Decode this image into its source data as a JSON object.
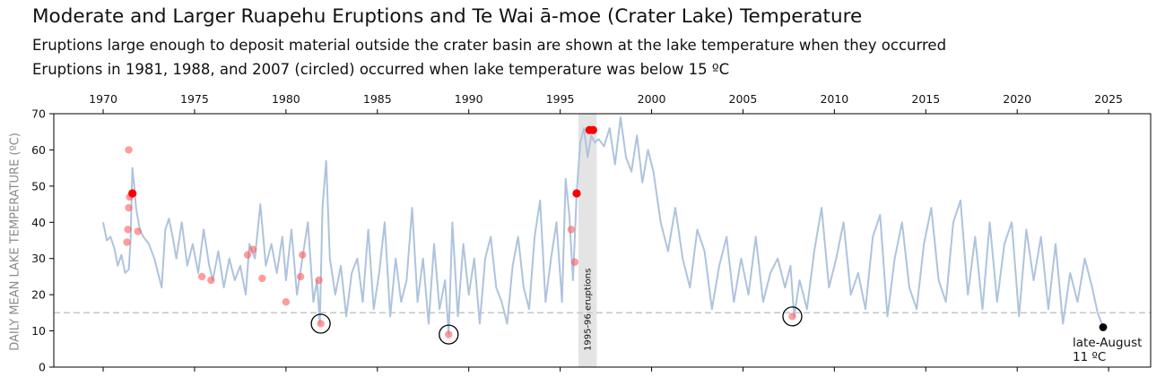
{
  "header": {
    "title": "Moderate and Larger Ruapehu Eruptions and Te Wai ā-moe (Crater Lake) Temperature",
    "subtitle1": "Eruptions large enough to deposit material outside the crater basin are shown at the lake temperature when they occurred",
    "subtitle2": "Eruptions in 1981, 1988, and 2007 (circled) occurred when lake temperature was below 15 ºC"
  },
  "chart_data": {
    "type": "line",
    "ylabel": "DAILY MEAN LAKE TEMPERATURE (ºC)",
    "xlabel": "",
    "xlim": [
      1967.3,
      2027.3
    ],
    "ylim": [
      0,
      70
    ],
    "xticks": [
      1970,
      1975,
      1980,
      1985,
      1990,
      1995,
      2000,
      2005,
      2010,
      2015,
      2020,
      2025
    ],
    "yticks": [
      0,
      10,
      20,
      30,
      40,
      50,
      60,
      70
    ],
    "threshold": 15,
    "shaded_span": {
      "x0": 1996.0,
      "x1": 1997.0,
      "label": "1995-96 eruptions"
    },
    "colors": {
      "line": "#aec3de",
      "eruption": "#ff5a5a",
      "eruption_bold": "#ff0000",
      "threshold": "#c8c8c8",
      "shade": "#e4e4e4",
      "latest": "#000000"
    },
    "series": [
      {
        "x": [
          1970.0,
          1970.2,
          1970.4,
          1970.6,
          1970.8,
          1971.0,
          1971.2,
          1971.4,
          1971.5,
          1971.6,
          1971.7,
          1971.8,
          1972.0,
          1972.2,
          1972.5,
          1972.8,
          1973.0,
          1973.2,
          1973.4,
          1973.6,
          1973.8,
          1974.0,
          1974.3,
          1974.6,
          1974.9,
          1975.2,
          1975.5,
          1975.8,
          1976.0,
          1976.3,
          1976.6,
          1976.9,
          1977.2,
          1977.5,
          1977.8,
          1978.0,
          1978.3,
          1978.6,
          1978.9,
          1979.2,
          1979.5,
          1979.8,
          1980.0,
          1980.3,
          1980.6,
          1980.9,
          1981.2,
          1981.5,
          1981.7,
          1981.85,
          1982.0,
          1982.2,
          1982.4,
          1982.7,
          1983.0,
          1983.3,
          1983.6,
          1983.9,
          1984.2,
          1984.5,
          1984.8,
          1985.1,
          1985.4,
          1985.7,
          1986.0,
          1986.3,
          1986.6,
          1986.9,
          1987.2,
          1987.5,
          1987.8,
          1988.1,
          1988.4,
          1988.7,
          1988.9,
          1989.1,
          1989.4,
          1989.7,
          1990.0,
          1990.3,
          1990.6,
          1990.9,
          1991.2,
          1991.5,
          1991.8,
          1992.1,
          1992.4,
          1992.7,
          1993.0,
          1993.3,
          1993.6,
          1993.9,
          1994.2,
          1994.5,
          1994.8,
          1995.1,
          1995.3,
          1995.5,
          1995.7,
          1995.9,
          1996.1,
          1996.3,
          1996.5,
          1996.7,
          1996.9,
          1997.1,
          1997.4,
          1997.7,
          1998.0,
          1998.3,
          1998.6,
          1998.9,
          1999.2,
          1999.5,
          1999.8,
          2000.1,
          2000.5,
          2000.9,
          2001.3,
          2001.7,
          2002.1,
          2002.5,
          2002.9,
          2003.3,
          2003.7,
          2004.1,
          2004.5,
          2004.9,
          2005.3,
          2005.7,
          2006.1,
          2006.5,
          2006.9,
          2007.3,
          2007.6,
          2007.8,
          2008.1,
          2008.5,
          2008.9,
          2009.3,
          2009.7,
          2010.1,
          2010.5,
          2010.9,
          2011.3,
          2011.7,
          2012.1,
          2012.5,
          2012.9,
          2013.3,
          2013.7,
          2014.1,
          2014.5,
          2014.9,
          2015.3,
          2015.7,
          2016.1,
          2016.5,
          2016.9,
          2017.3,
          2017.7,
          2018.1,
          2018.5,
          2018.9,
          2019.3,
          2019.7,
          2020.1,
          2020.5,
          2020.9,
          2021.3,
          2021.7,
          2022.1,
          2022.5,
          2022.9,
          2023.3,
          2023.7,
          2024.1,
          2024.4,
          2024.7
        ],
        "y": [
          40,
          35,
          36,
          33,
          28,
          31,
          26,
          27,
          35,
          55,
          50,
          44,
          38,
          36,
          34,
          30,
          26,
          22,
          38,
          41,
          36,
          30,
          40,
          28,
          34,
          26,
          38,
          28,
          24,
          32,
          22,
          30,
          24,
          28,
          20,
          34,
          30,
          45,
          28,
          34,
          26,
          36,
          24,
          38,
          20,
          30,
          40,
          18,
          24,
          12,
          44,
          57,
          30,
          20,
          28,
          14,
          26,
          30,
          18,
          38,
          16,
          26,
          40,
          14,
          30,
          18,
          24,
          44,
          18,
          30,
          12,
          34,
          16,
          24,
          9,
          40,
          14,
          34,
          20,
          30,
          12,
          30,
          36,
          22,
          18,
          12,
          28,
          36,
          22,
          16,
          36,
          46,
          18,
          30,
          40,
          18,
          52,
          42,
          24,
          48,
          62,
          66,
          58,
          64,
          62,
          63,
          61,
          66,
          56,
          69,
          58,
          54,
          64,
          51,
          60,
          54,
          40,
          32,
          44,
          30,
          22,
          38,
          32,
          16,
          28,
          36,
          18,
          30,
          20,
          36,
          18,
          26,
          30,
          22,
          28,
          14,
          24,
          16,
          32,
          44,
          22,
          30,
          40,
          20,
          26,
          16,
          36,
          42,
          14,
          30,
          40,
          22,
          16,
          34,
          44,
          24,
          18,
          40,
          46,
          20,
          36,
          16,
          40,
          18,
          34,
          40,
          14,
          38,
          24,
          36,
          16,
          34,
          12,
          26,
          18,
          30,
          22,
          15,
          11
        ]
      }
    ],
    "eruptions": [
      {
        "x": 1971.3,
        "y": 34.5
      },
      {
        "x": 1971.35,
        "y": 38
      },
      {
        "x": 1971.4,
        "y": 44
      },
      {
        "x": 1971.45,
        "y": 47
      },
      {
        "x": 1971.4,
        "y": 60
      },
      {
        "x": 1971.9,
        "y": 37.5
      },
      {
        "x": 1975.4,
        "y": 25
      },
      {
        "x": 1975.9,
        "y": 24
      },
      {
        "x": 1977.9,
        "y": 31
      },
      {
        "x": 1978.2,
        "y": 32.5
      },
      {
        "x": 1978.7,
        "y": 24.5
      },
      {
        "x": 1980.0,
        "y": 18
      },
      {
        "x": 1980.8,
        "y": 25
      },
      {
        "x": 1980.9,
        "y": 31
      },
      {
        "x": 1981.8,
        "y": 24
      },
      {
        "x": 1981.9,
        "y": 12
      },
      {
        "x": 1988.9,
        "y": 9
      },
      {
        "x": 1995.6,
        "y": 38
      },
      {
        "x": 1995.8,
        "y": 29
      },
      {
        "x": 2007.7,
        "y": 14
      }
    ],
    "eruptions_bold": [
      {
        "x": 1971.6,
        "y": 48
      },
      {
        "x": 1995.9,
        "y": 48
      },
      {
        "x": 1996.6,
        "y": 65.5
      },
      {
        "x": 1996.8,
        "y": 65.5
      }
    ],
    "circled": [
      {
        "x": 1981.9,
        "y": 12
      },
      {
        "x": 1988.9,
        "y": 9
      },
      {
        "x": 2007.7,
        "y": 14
      }
    ],
    "latest": {
      "x": 2024.7,
      "y": 11,
      "label_line1": "late-August",
      "label_line2": "11 ºC"
    }
  }
}
